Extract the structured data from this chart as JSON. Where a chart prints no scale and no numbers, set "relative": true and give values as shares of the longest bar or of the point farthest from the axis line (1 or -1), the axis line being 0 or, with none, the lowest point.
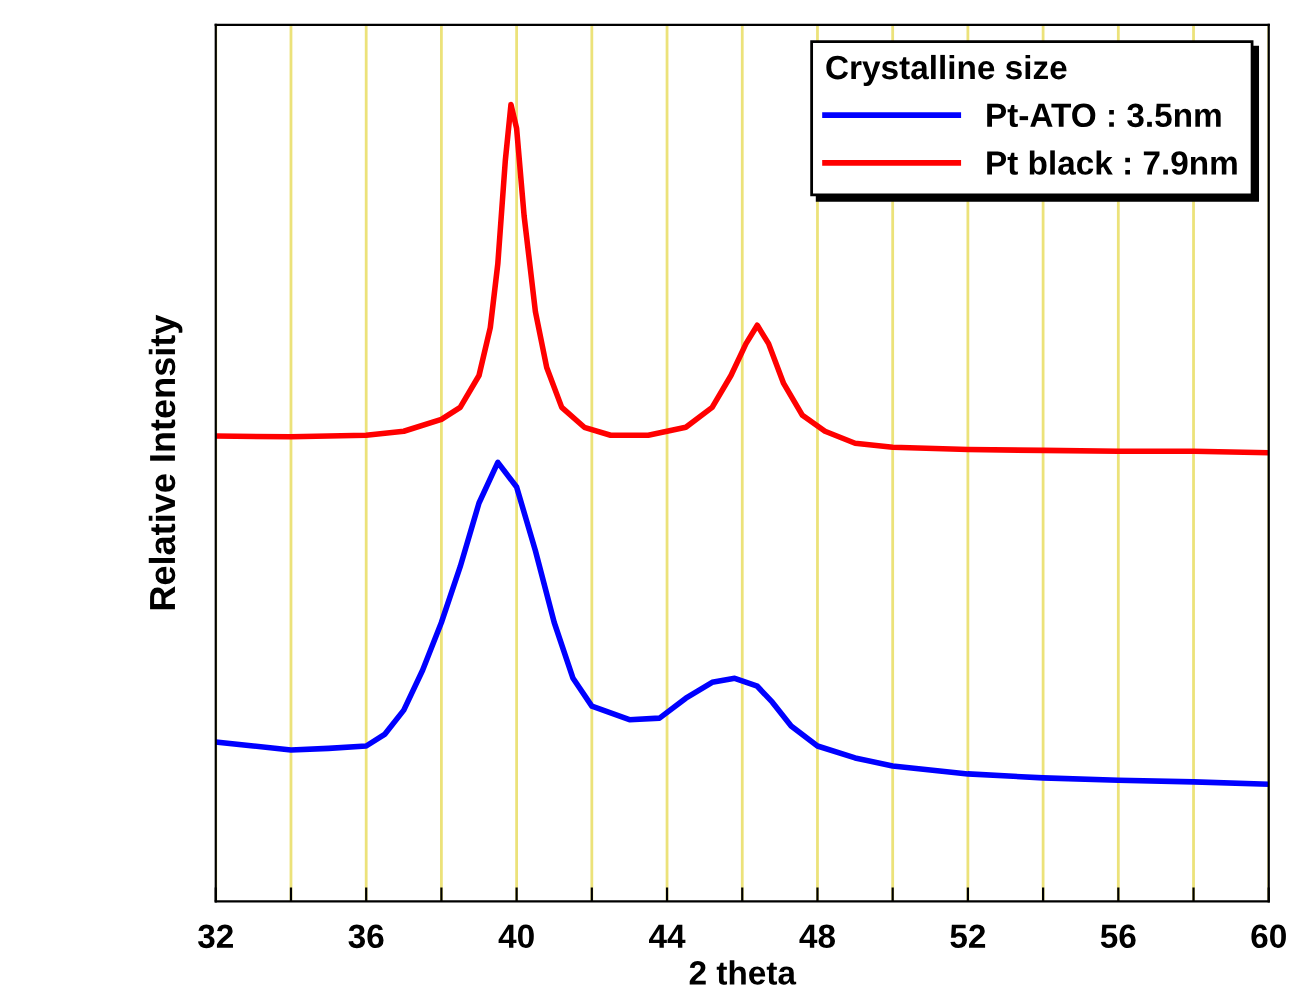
{
  "chart_data": {
    "type": "line",
    "relative": true,
    "xlabel": "2 theta",
    "ylabel": "Relative Intensity",
    "legend_title": "Crystalline size",
    "legend": "top right",
    "grid": "x",
    "marker": "none",
    "line_style": "solid",
    "xlim": [
      32,
      60
    ],
    "xticks": [
      32,
      {
        "value": 34,
        "label": null
      },
      36,
      {
        "value": 38,
        "label": null
      },
      40,
      {
        "value": 42,
        "label": null
      },
      44,
      {
        "value": 46,
        "label": null
      },
      48,
      {
        "value": 50,
        "label": null
      },
      52,
      {
        "value": 54,
        "label": null
      },
      56,
      {
        "value": 58,
        "label": null
      },
      60
    ],
    "series": [
      {
        "name": "Pt-ATO : 3.5nm",
        "color": "#0000ff",
        "x": [
          32,
          33,
          34,
          35,
          36,
          36.5,
          37,
          37.5,
          38,
          38.5,
          39,
          39.5,
          40,
          40.5,
          41,
          41.5,
          42,
          43,
          43.8,
          44.5,
          45.2,
          45.8,
          46.4,
          46.8,
          47.3,
          48,
          49,
          50,
          52,
          54,
          56,
          58,
          60
        ],
        "values": [
          0.2,
          0.195,
          0.19,
          0.192,
          0.195,
          0.21,
          0.24,
          0.29,
          0.35,
          0.42,
          0.5,
          0.551,
          0.52,
          0.44,
          0.35,
          0.28,
          0.245,
          0.228,
          0.23,
          0.255,
          0.275,
          0.28,
          0.27,
          0.25,
          0.22,
          0.195,
          0.18,
          0.17,
          0.16,
          0.155,
          0.152,
          0.15,
          0.147
        ]
      },
      {
        "name": "Pt black : 7.9nm",
        "color": "#ff0000",
        "x": [
          32,
          34,
          36,
          37,
          38,
          38.5,
          39,
          39.3,
          39.5,
          39.7,
          39.85,
          40.0,
          40.2,
          40.5,
          40.8,
          41.2,
          41.8,
          42.5,
          43.5,
          44.5,
          45.2,
          45.7,
          46.1,
          46.4,
          46.7,
          47.1,
          47.6,
          48.2,
          49,
          50,
          52,
          54,
          56,
          58,
          60
        ],
        "values": [
          0.584,
          0.583,
          0.585,
          0.59,
          0.605,
          0.62,
          0.66,
          0.72,
          0.8,
          0.93,
          1.0,
          0.97,
          0.86,
          0.74,
          0.67,
          0.62,
          0.595,
          0.585,
          0.585,
          0.595,
          0.62,
          0.66,
          0.7,
          0.723,
          0.7,
          0.65,
          0.61,
          0.59,
          0.575,
          0.57,
          0.567,
          0.566,
          0.565,
          0.565,
          0.563
        ]
      }
    ]
  }
}
